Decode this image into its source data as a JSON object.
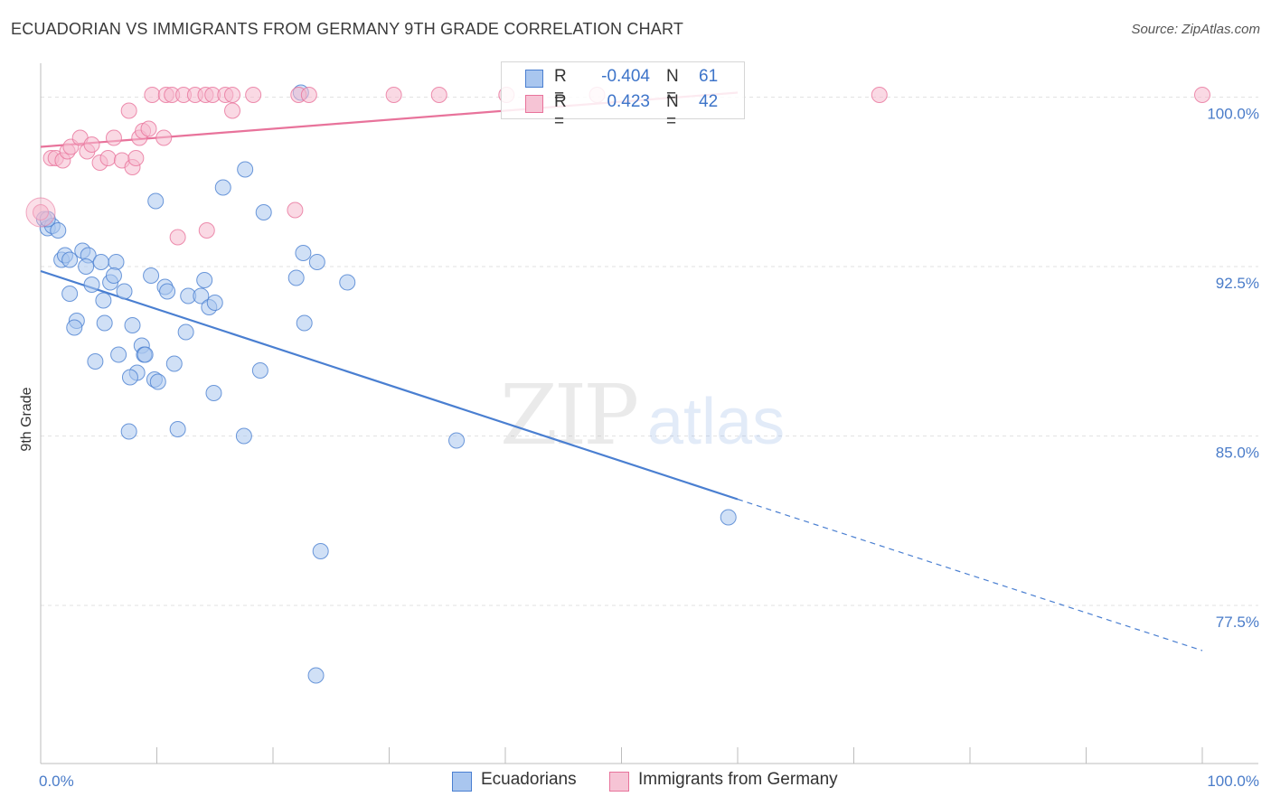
{
  "header": {
    "title": "ECUADORIAN VS IMMIGRANTS FROM GERMANY 9TH GRADE CORRELATION CHART",
    "source": "Source: ZipAtlas.com"
  },
  "watermark": {
    "zip": "ZIP",
    "atlas": "atlas"
  },
  "colors": {
    "blue": "#4a7fd1",
    "blue_fill": "#a9c6ef",
    "pink": "#e8739b",
    "pink_fill": "#f6b9cd",
    "tick_text": "#4a7cc9"
  },
  "legend": {
    "rows": [
      {
        "r_label": "R =",
        "r_value": "-0.404",
        "n_label": "N =",
        "n_value": "61"
      },
      {
        "r_label": "R =",
        "r_value": "0.423",
        "n_label": "N =",
        "n_value": "42"
      }
    ]
  },
  "bottom_legend": {
    "items": [
      {
        "label": "Ecuadorians"
      },
      {
        "label": "Immigrants from Germany"
      }
    ]
  },
  "chart_data": {
    "type": "scatter",
    "title": "ECUADORIAN VS IMMIGRANTS FROM GERMANY 9TH GRADE CORRELATION CHART",
    "xlabel": "",
    "ylabel": "9th Grade",
    "xlim": [
      0,
      100
    ],
    "ylim": [
      70.5,
      101.5
    ],
    "x_tick_labels": [
      "0.0%",
      "100.0%"
    ],
    "y_ticks": [
      77.5,
      85.0,
      92.5,
      100.0
    ],
    "y_tick_labels": [
      "77.5%",
      "85.0%",
      "92.5%",
      "100.0%"
    ],
    "grid": true,
    "legend_position": "top-center",
    "series": [
      {
        "name": "Ecuadorians",
        "color": "#4a7fd1",
        "r": -0.404,
        "n": 61,
        "trend": {
          "x": [
            0,
            60,
            100
          ],
          "y": [
            92.3,
            82.2,
            75.5
          ],
          "solid_until": 60
        },
        "points": [
          [
            0.3,
            94.6
          ],
          [
            0.6,
            94.2
          ],
          [
            1.0,
            94.3
          ],
          [
            1.5,
            94.1
          ],
          [
            1.8,
            92.8
          ],
          [
            2.1,
            93.0
          ],
          [
            2.5,
            92.8
          ],
          [
            3.6,
            93.2
          ],
          [
            4.1,
            93.0
          ],
          [
            3.9,
            92.5
          ],
          [
            5.2,
            92.7
          ],
          [
            6.5,
            92.7
          ],
          [
            2.5,
            91.3
          ],
          [
            4.4,
            91.7
          ],
          [
            5.4,
            91.0
          ],
          [
            6.0,
            91.8
          ],
          [
            6.3,
            92.1
          ],
          [
            7.2,
            91.4
          ],
          [
            9.5,
            92.1
          ],
          [
            10.7,
            91.6
          ],
          [
            10.9,
            91.4
          ],
          [
            12.7,
            91.2
          ],
          [
            13.8,
            91.2
          ],
          [
            14.1,
            91.9
          ],
          [
            14.5,
            90.7
          ],
          [
            15.0,
            90.9
          ],
          [
            3.1,
            90.1
          ],
          [
            2.9,
            89.8
          ],
          [
            5.5,
            90.0
          ],
          [
            7.9,
            89.9
          ],
          [
            12.5,
            89.6
          ],
          [
            8.7,
            89.0
          ],
          [
            6.7,
            88.6
          ],
          [
            8.9,
            88.6
          ],
          [
            9.0,
            88.6
          ],
          [
            4.7,
            88.3
          ],
          [
            11.5,
            88.2
          ],
          [
            8.3,
            87.8
          ],
          [
            7.7,
            87.6
          ],
          [
            9.8,
            87.5
          ],
          [
            10.1,
            87.4
          ],
          [
            14.9,
            86.9
          ],
          [
            18.9,
            87.9
          ],
          [
            9.9,
            95.4
          ],
          [
            15.7,
            96.0
          ],
          [
            17.6,
            96.8
          ],
          [
            19.2,
            94.9
          ],
          [
            22.6,
            93.1
          ],
          [
            23.8,
            92.7
          ],
          [
            22.0,
            92.0
          ],
          [
            26.4,
            91.8
          ],
          [
            22.7,
            90.0
          ],
          [
            7.6,
            85.2
          ],
          [
            11.8,
            85.3
          ],
          [
            17.5,
            85.0
          ],
          [
            35.8,
            84.8
          ],
          [
            59.2,
            81.4
          ],
          [
            24.1,
            79.9
          ],
          [
            23.7,
            74.4
          ],
          [
            22.4,
            100.2
          ],
          [
            0.6,
            94.6
          ]
        ]
      },
      {
        "name": "Immigrants from Germany",
        "color": "#e8739b",
        "r": 0.423,
        "n": 42,
        "trend": {
          "x": [
            0,
            60
          ],
          "y": [
            97.8,
            100.2
          ],
          "solid_until": 60
        },
        "points": [
          [
            0.0,
            94.9
          ],
          [
            0.9,
            97.3
          ],
          [
            1.3,
            97.3
          ],
          [
            1.9,
            97.2
          ],
          [
            2.3,
            97.6
          ],
          [
            2.6,
            97.8
          ],
          [
            3.4,
            98.2
          ],
          [
            4.0,
            97.6
          ],
          [
            4.4,
            97.9
          ],
          [
            5.1,
            97.1
          ],
          [
            5.8,
            97.3
          ],
          [
            6.3,
            98.2
          ],
          [
            7.0,
            97.2
          ],
          [
            7.6,
            99.4
          ],
          [
            7.9,
            96.9
          ],
          [
            8.2,
            97.3
          ],
          [
            8.5,
            98.2
          ],
          [
            8.8,
            98.5
          ],
          [
            9.3,
            98.6
          ],
          [
            10.6,
            98.2
          ],
          [
            9.6,
            100.1
          ],
          [
            10.8,
            100.1
          ],
          [
            11.3,
            100.1
          ],
          [
            12.3,
            100.1
          ],
          [
            13.3,
            100.1
          ],
          [
            14.2,
            100.1
          ],
          [
            14.8,
            100.1
          ],
          [
            15.9,
            100.1
          ],
          [
            16.5,
            100.1
          ],
          [
            18.3,
            100.1
          ],
          [
            16.5,
            99.4
          ],
          [
            11.8,
            93.8
          ],
          [
            14.3,
            94.1
          ],
          [
            21.9,
            95.0
          ],
          [
            22.2,
            100.1
          ],
          [
            23.1,
            100.1
          ],
          [
            30.4,
            100.1
          ],
          [
            34.3,
            100.1
          ],
          [
            40.1,
            100.1
          ],
          [
            47.9,
            100.1
          ],
          [
            72.2,
            100.1
          ],
          [
            100.0,
            100.1
          ]
        ]
      }
    ]
  }
}
